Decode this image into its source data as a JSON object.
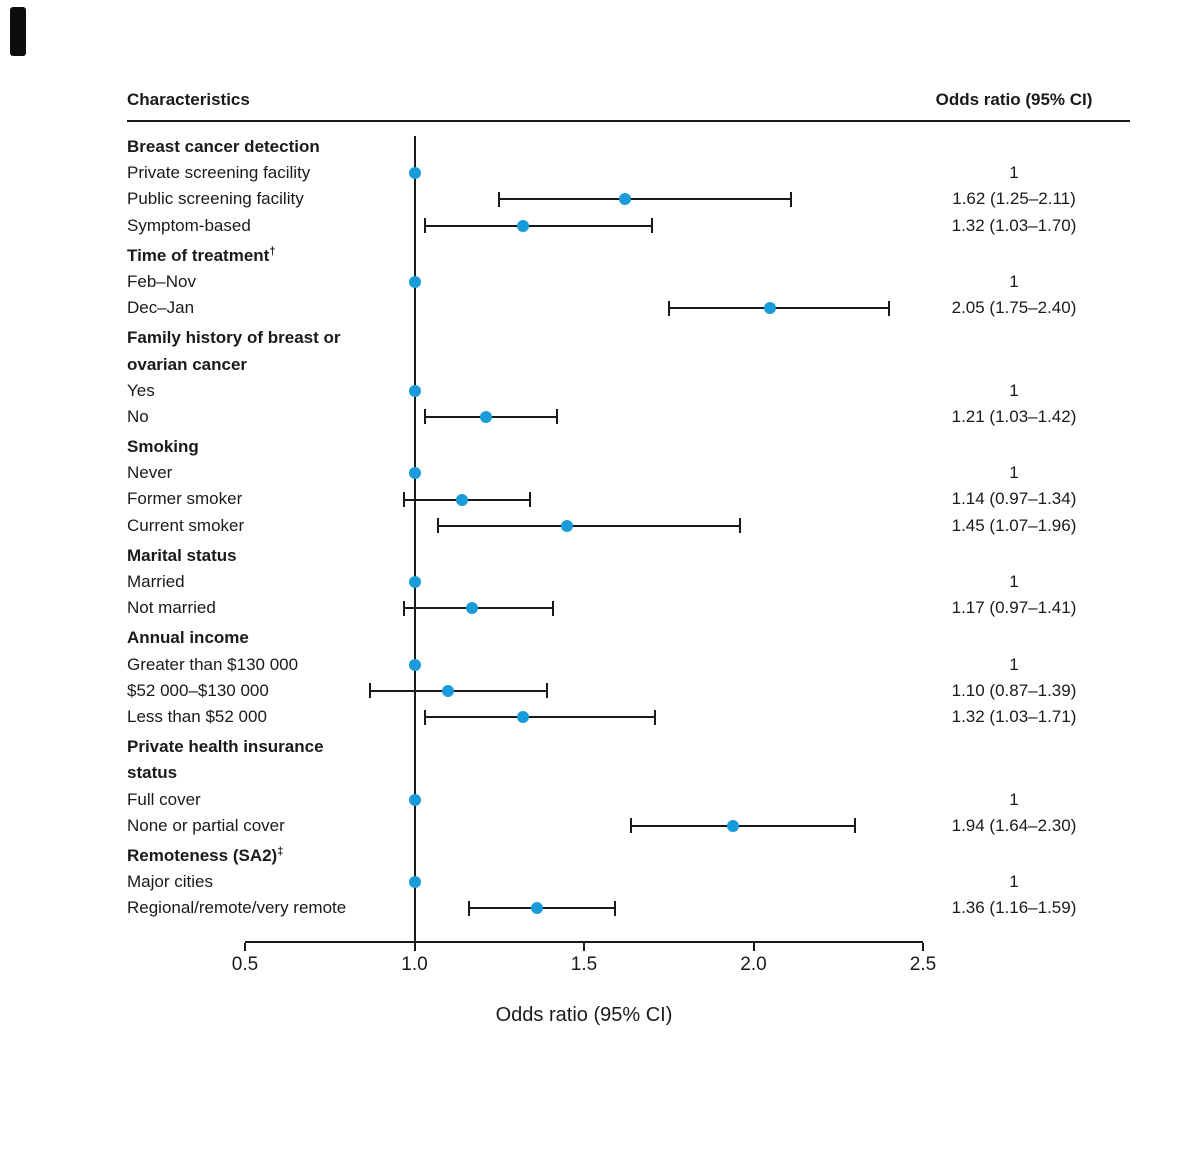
{
  "colors": {
    "marker": "#189cd9",
    "line": "#1a1a1a",
    "text": "#1a1a1a"
  },
  "chart_data": {
    "type": "scatter",
    "subtype": "forest-plot",
    "title": "",
    "xlabel": "Odds ratio (95% CI)",
    "columns": {
      "left": "Characteristics",
      "right": "Odds ratio (95% CI)"
    },
    "xlim": [
      0.5,
      2.5
    ],
    "xtick_values": [
      0.5,
      1.0,
      1.5,
      2.0,
      2.5
    ],
    "xtick_labels": [
      "0.5",
      "1.0",
      "1.5",
      "2.0",
      "2.5"
    ],
    "reference_line": 1.0,
    "grid": false,
    "rows": [
      {
        "kind": "header",
        "label": "Breast cancer detection"
      },
      {
        "kind": "item",
        "label": "Private screening facility",
        "or": 1,
        "display": "1"
      },
      {
        "kind": "item",
        "label": "Public screening facility",
        "or": 1.62,
        "ci_low": 1.25,
        "ci_high": 2.11,
        "display": "1.62 (1.25–2.11)"
      },
      {
        "kind": "item",
        "label": "Symptom-based",
        "or": 1.32,
        "ci_low": 1.03,
        "ci_high": 1.7,
        "display": "1.32 (1.03–1.70)"
      },
      {
        "kind": "header",
        "label": "Time of treatment",
        "sup": "†"
      },
      {
        "kind": "item",
        "label": "Feb–Nov",
        "or": 1,
        "display": "1"
      },
      {
        "kind": "item",
        "label": "Dec–Jan",
        "or": 2.05,
        "ci_low": 1.75,
        "ci_high": 2.4,
        "display": "2.05 (1.75–2.40)"
      },
      {
        "kind": "header",
        "label": "Family history of breast or"
      },
      {
        "kind": "header-cont",
        "label": "ovarian cancer"
      },
      {
        "kind": "item",
        "label": "Yes",
        "or": 1,
        "display": "1"
      },
      {
        "kind": "item",
        "label": "No",
        "or": 1.21,
        "ci_low": 1.03,
        "ci_high": 1.42,
        "display": "1.21 (1.03–1.42)"
      },
      {
        "kind": "header",
        "label": "Smoking"
      },
      {
        "kind": "item",
        "label": "Never",
        "or": 1,
        "display": "1"
      },
      {
        "kind": "item",
        "label": "Former smoker",
        "or": 1.14,
        "ci_low": 0.97,
        "ci_high": 1.34,
        "display": "1.14 (0.97–1.34)"
      },
      {
        "kind": "item",
        "label": "Current smoker",
        "or": 1.45,
        "ci_low": 1.07,
        "ci_high": 1.96,
        "display": "1.45 (1.07–1.96)"
      },
      {
        "kind": "header",
        "label": "Marital status"
      },
      {
        "kind": "item",
        "label": "Married",
        "or": 1,
        "display": "1"
      },
      {
        "kind": "item",
        "label": "Not married",
        "or": 1.17,
        "ci_low": 0.97,
        "ci_high": 1.41,
        "display": "1.17 (0.97–1.41)"
      },
      {
        "kind": "header",
        "label": "Annual income"
      },
      {
        "kind": "item",
        "label": "Greater than $130 000",
        "or": 1,
        "display": "1"
      },
      {
        "kind": "item",
        "label": "$52 000–$130 000",
        "or": 1.1,
        "ci_low": 0.87,
        "ci_high": 1.39,
        "display": "1.10 (0.87–1.39)"
      },
      {
        "kind": "item",
        "label": "Less than $52 000",
        "or": 1.32,
        "ci_low": 1.03,
        "ci_high": 1.71,
        "display": "1.32 (1.03–1.71)"
      },
      {
        "kind": "header",
        "label": "Private health insurance"
      },
      {
        "kind": "header-cont",
        "label": "status"
      },
      {
        "kind": "item",
        "label": "Full cover",
        "or": 1,
        "display": "1"
      },
      {
        "kind": "item",
        "label": "None or partial cover",
        "or": 1.94,
        "ci_low": 1.64,
        "ci_high": 2.3,
        "display": "1.94 (1.64–2.30)"
      },
      {
        "kind": "header",
        "label": "Remoteness (SA2)",
        "sup": "‡"
      },
      {
        "kind": "item",
        "label": "Major cities",
        "or": 1,
        "display": "1"
      },
      {
        "kind": "item",
        "label": "Regional/remote/very remote",
        "or": 1.36,
        "ci_low": 1.16,
        "ci_high": 1.59,
        "display": "1.36 (1.16–1.59)"
      }
    ]
  }
}
